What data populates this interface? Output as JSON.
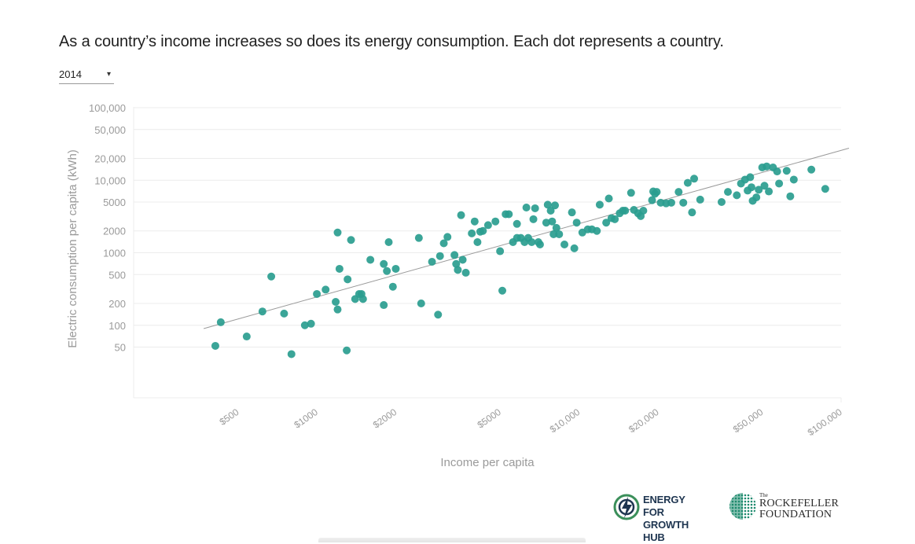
{
  "headline": "As a country’s income increases so does its energy consumption. Each dot represents a country.",
  "year_select": {
    "value": "2014",
    "caret": "▾"
  },
  "colors": {
    "dot": "#2a9d8f",
    "trend": "#9a9a9a",
    "grid": "#ececec",
    "axis_text": "#9a9a9a"
  },
  "chart_data": {
    "type": "scatter",
    "title": "",
    "xlabel": "Income per capita",
    "ylabel": "Electric consumption per capita (kWh)",
    "x_scale": "log",
    "y_scale": "log",
    "xlim": [
      200,
      100000
    ],
    "ylim": [
      10,
      100000
    ],
    "x_ticks": [
      {
        "value": 500,
        "label": "$500"
      },
      {
        "value": 1000,
        "label": "$1000"
      },
      {
        "value": 2000,
        "label": "$2000"
      },
      {
        "value": 5000,
        "label": "$5000"
      },
      {
        "value": 10000,
        "label": "$10,000"
      },
      {
        "value": 20000,
        "label": "$20,000"
      },
      {
        "value": 50000,
        "label": "$50,000"
      },
      {
        "value": 100000,
        "label": "$100,000"
      }
    ],
    "y_ticks": [
      {
        "value": 100000,
        "label": "100,000"
      },
      {
        "value": 50000,
        "label": "50,000"
      },
      {
        "value": 20000,
        "label": "20,000"
      },
      {
        "value": 10000,
        "label": "10,000"
      },
      {
        "value": 5000,
        "label": "5000"
      },
      {
        "value": 2000,
        "label": "2000"
      },
      {
        "value": 1000,
        "label": "1000"
      },
      {
        "value": 500,
        "label": "500"
      },
      {
        "value": 200,
        "label": "200"
      },
      {
        "value": 100,
        "label": "100"
      },
      {
        "value": 50,
        "label": "50"
      }
    ],
    "grid": true,
    "trendline": [
      [
        370,
        90
      ],
      [
        100000,
        25000
      ]
    ],
    "points": [
      [
        410,
        52
      ],
      [
        430,
        110
      ],
      [
        540,
        70
      ],
      [
        620,
        155
      ],
      [
        670,
        470
      ],
      [
        750,
        145
      ],
      [
        800,
        40
      ],
      [
        900,
        100
      ],
      [
        950,
        105
      ],
      [
        1000,
        270
      ],
      [
        1080,
        310
      ],
      [
        1180,
        210
      ],
      [
        1200,
        165
      ],
      [
        1220,
        600
      ],
      [
        1200,
        1900
      ],
      [
        1300,
        45
      ],
      [
        1310,
        430
      ],
      [
        1350,
        1500
      ],
      [
        1400,
        230
      ],
      [
        1450,
        270
      ],
      [
        1480,
        270
      ],
      [
        1500,
        230
      ],
      [
        1600,
        800
      ],
      [
        1800,
        190
      ],
      [
        1800,
        700
      ],
      [
        1850,
        560
      ],
      [
        1880,
        1400
      ],
      [
        1950,
        340
      ],
      [
        2000,
        600
      ],
      [
        2450,
        1600
      ],
      [
        2500,
        200
      ],
      [
        2750,
        750
      ],
      [
        2900,
        140
      ],
      [
        2950,
        900
      ],
      [
        3050,
        1350
      ],
      [
        3150,
        1650
      ],
      [
        3350,
        930
      ],
      [
        3400,
        700
      ],
      [
        3450,
        580
      ],
      [
        3550,
        3300
      ],
      [
        3600,
        800
      ],
      [
        3700,
        530
      ],
      [
        3900,
        1850
      ],
      [
        4000,
        2700
      ],
      [
        4100,
        1400
      ],
      [
        4200,
        1950
      ],
      [
        4300,
        2000
      ],
      [
        4500,
        2400
      ],
      [
        4800,
        2700
      ],
      [
        5000,
        1050
      ],
      [
        5100,
        300
      ],
      [
        5250,
        3400
      ],
      [
        5400,
        3400
      ],
      [
        5600,
        1400
      ],
      [
        5800,
        2500
      ],
      [
        5800,
        1600
      ],
      [
        6000,
        1600
      ],
      [
        6200,
        1400
      ],
      [
        6300,
        4200
      ],
      [
        6400,
        1600
      ],
      [
        6600,
        1400
      ],
      [
        6700,
        2900
      ],
      [
        6800,
        4100
      ],
      [
        7000,
        1400
      ],
      [
        7100,
        1300
      ],
      [
        7500,
        2600
      ],
      [
        7600,
        4600
      ],
      [
        7800,
        3800
      ],
      [
        7900,
        2700
      ],
      [
        8000,
        1800
      ],
      [
        8100,
        4500
      ],
      [
        8200,
        2200
      ],
      [
        8400,
        1800
      ],
      [
        8800,
        1300
      ],
      [
        9400,
        3600
      ],
      [
        9600,
        1150
      ],
      [
        9800,
        2600
      ],
      [
        10300,
        1900
      ],
      [
        10800,
        2100
      ],
      [
        11200,
        2100
      ],
      [
        11700,
        2000
      ],
      [
        12000,
        4600
      ],
      [
        12700,
        2600
      ],
      [
        13000,
        5600
      ],
      [
        13300,
        3000
      ],
      [
        13700,
        2900
      ],
      [
        14300,
        3500
      ],
      [
        14700,
        3800
      ],
      [
        15000,
        3800
      ],
      [
        15800,
        6700
      ],
      [
        16200,
        3900
      ],
      [
        16800,
        3500
      ],
      [
        17200,
        3200
      ],
      [
        17600,
        3800
      ],
      [
        19000,
        5300
      ],
      [
        19200,
        7000
      ],
      [
        19500,
        6500
      ],
      [
        19800,
        6900
      ],
      [
        20500,
        4900
      ],
      [
        21500,
        4800
      ],
      [
        22500,
        4900
      ],
      [
        24000,
        6900
      ],
      [
        25000,
        4900
      ],
      [
        26000,
        9200
      ],
      [
        27000,
        3600
      ],
      [
        27500,
        10500
      ],
      [
        29000,
        5400
      ],
      [
        35000,
        5000
      ],
      [
        37000,
        6900
      ],
      [
        40000,
        6200
      ],
      [
        41500,
        9000
      ],
      [
        43000,
        10200
      ],
      [
        44000,
        7200
      ],
      [
        45000,
        11000
      ],
      [
        45500,
        8000
      ],
      [
        46000,
        5200
      ],
      [
        47500,
        5800
      ],
      [
        48500,
        7400
      ],
      [
        50000,
        15000
      ],
      [
        51000,
        8400
      ],
      [
        52000,
        15500
      ],
      [
        53000,
        7000
      ],
      [
        55000,
        15000
      ],
      [
        57000,
        13200
      ],
      [
        58000,
        9000
      ],
      [
        62000,
        13500
      ],
      [
        64000,
        6000
      ],
      [
        66000,
        10200
      ],
      [
        77000,
        14000
      ],
      [
        87000,
        7600
      ]
    ]
  },
  "logos": {
    "energy_for_growth": {
      "line1": "ENERGY FOR",
      "line2": "GROWTH HUB"
    },
    "rockefeller": {
      "the": "The",
      "line1": "ROCKEFELLER",
      "line2": "FOUNDATION"
    }
  }
}
